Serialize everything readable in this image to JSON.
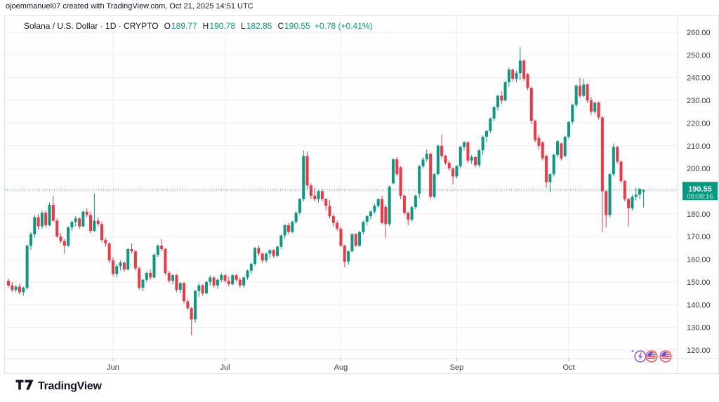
{
  "attribution": "ojoemmanuel07 created with TradingView.com, Oct 21, 2025 14:51 UTC",
  "header": {
    "title": "Solana / U.S. Dollar · 1D · CRYPTO",
    "o_label": "O",
    "o_value": "189.77",
    "h_label": "H",
    "h_value": "190.78",
    "l_label": "L",
    "l_value": "182.85",
    "c_label": "C",
    "c_value": "190.55",
    "change": "+0.78 (+0.41%)"
  },
  "price_label": {
    "price": "190.55",
    "countdown": "09:08:16"
  },
  "footer": {
    "logo_text": "TradingView"
  },
  "colors": {
    "up": "#089981",
    "down": "#f23645",
    "grid": "#f7e8ed",
    "border": "#e0e3eb",
    "axis_text": "#363a45",
    "tick": "#b2b5be",
    "badge_text": "#ffffff"
  },
  "chart_data": {
    "type": "candlestick",
    "title": "Solana / U.S. Dollar, 1D, CRYPTO",
    "interval": "1D",
    "first_candle_date": "2025-05-04",
    "last_candle_date": "2025-10-21",
    "last_price": 190.55,
    "y_ticks": [
      260,
      250,
      240,
      230,
      220,
      210,
      200,
      190,
      180,
      170,
      160,
      150,
      140,
      130,
      120
    ],
    "y_tick_label_hidden": 190,
    "y_range_visible": [
      116,
      267
    ],
    "grid": true,
    "month_ticks": [
      {
        "label": "Jun",
        "index": 28
      },
      {
        "label": "Jul",
        "index": 58
      },
      {
        "label": "Aug",
        "index": 89
      },
      {
        "label": "Sep",
        "index": 120
      },
      {
        "label": "Oct",
        "index": 150
      }
    ],
    "ohlc_order": [
      "open",
      "high",
      "low",
      "close"
    ],
    "candles": [
      [
        150.5,
        151.5,
        147.5,
        148.5
      ],
      [
        148.5,
        150.0,
        145.5,
        146.5
      ],
      [
        146.5,
        148.5,
        145.5,
        148.0
      ],
      [
        148.0,
        149.5,
        144.5,
        145.5
      ],
      [
        145.5,
        148.0,
        144.0,
        147.5
      ],
      [
        147.5,
        166.5,
        146.5,
        166.0
      ],
      [
        166.0,
        172.0,
        164.0,
        171.0
      ],
      [
        171.0,
        179.5,
        169.5,
        178.5
      ],
      [
        178.5,
        180.0,
        173.0,
        174.5
      ],
      [
        174.5,
        181.5,
        173.5,
        180.5
      ],
      [
        180.5,
        181.5,
        174.0,
        175.0
      ],
      [
        175.0,
        185.0,
        174.5,
        184.0
      ],
      [
        184.0,
        188.0,
        176.5,
        177.0
      ],
      [
        177.0,
        178.0,
        169.5,
        170.0
      ],
      [
        170.0,
        171.5,
        167.0,
        168.0
      ],
      [
        168.0,
        169.0,
        162.5,
        166.0
      ],
      [
        166.0,
        174.5,
        165.5,
        174.0
      ],
      [
        174.0,
        177.0,
        172.5,
        176.5
      ],
      [
        176.5,
        179.0,
        174.5,
        178.0
      ],
      [
        178.0,
        178.5,
        173.5,
        174.5
      ],
      [
        174.5,
        181.5,
        174.0,
        181.0
      ],
      [
        181.0,
        182.5,
        178.5,
        179.5
      ],
      [
        179.5,
        181.0,
        171.5,
        172.5
      ],
      [
        172.5,
        189.0,
        172.0,
        177.0
      ],
      [
        177.0,
        178.5,
        174.5,
        175.5
      ],
      [
        175.5,
        176.5,
        167.5,
        168.5
      ],
      [
        168.5,
        169.5,
        165.5,
        167.0
      ],
      [
        167.0,
        167.5,
        158.5,
        159.5
      ],
      [
        159.5,
        161.0,
        152.5,
        153.5
      ],
      [
        153.5,
        158.0,
        152.0,
        157.0
      ],
      [
        157.0,
        159.5,
        155.0,
        158.5
      ],
      [
        158.5,
        159.0,
        154.5,
        155.5
      ],
      [
        155.5,
        165.0,
        155.0,
        164.5
      ],
      [
        164.5,
        167.0,
        162.5,
        163.5
      ],
      [
        163.5,
        164.0,
        155.0,
        156.0
      ],
      [
        156.0,
        157.0,
        146.5,
        147.5
      ],
      [
        147.5,
        151.5,
        146.0,
        151.0
      ],
      [
        151.0,
        154.5,
        150.0,
        154.0
      ],
      [
        154.0,
        155.5,
        151.0,
        152.0
      ],
      [
        152.0,
        162.5,
        151.5,
        162.0
      ],
      [
        162.0,
        166.5,
        161.0,
        166.0
      ],
      [
        166.0,
        169.0,
        163.5,
        164.5
      ],
      [
        164.5,
        165.0,
        153.0,
        154.0
      ],
      [
        154.0,
        155.0,
        149.5,
        150.5
      ],
      [
        150.5,
        153.5,
        149.0,
        153.0
      ],
      [
        153.0,
        153.5,
        145.5,
        146.5
      ],
      [
        146.5,
        150.0,
        145.0,
        149.5
      ],
      [
        149.5,
        150.0,
        140.5,
        141.5
      ],
      [
        141.5,
        142.5,
        137.5,
        138.5
      ],
      [
        138.5,
        139.0,
        126.5,
        133.5
      ],
      [
        133.5,
        146.5,
        132.0,
        146.0
      ],
      [
        146.0,
        149.5,
        143.5,
        148.5
      ],
      [
        148.5,
        149.0,
        144.0,
        145.0
      ],
      [
        145.0,
        150.5,
        144.5,
        150.0
      ],
      [
        150.0,
        153.0,
        148.5,
        152.0
      ],
      [
        152.0,
        152.5,
        147.5,
        148.5
      ],
      [
        148.5,
        151.5,
        147.0,
        151.0
      ],
      [
        151.0,
        154.0,
        150.0,
        153.0
      ],
      [
        153.0,
        153.5,
        149.5,
        150.5
      ],
      [
        150.5,
        152.5,
        148.0,
        149.0
      ],
      [
        149.0,
        153.5,
        148.5,
        153.0
      ],
      [
        153.0,
        153.5,
        150.0,
        151.0
      ],
      [
        151.0,
        152.0,
        147.5,
        148.5
      ],
      [
        148.5,
        152.5,
        147.5,
        152.0
      ],
      [
        152.0,
        155.5,
        151.0,
        155.0
      ],
      [
        155.0,
        158.5,
        153.5,
        158.0
      ],
      [
        158.0,
        165.5,
        157.0,
        165.0
      ],
      [
        165.0,
        166.0,
        161.5,
        162.5
      ],
      [
        162.5,
        163.0,
        158.5,
        159.5
      ],
      [
        159.5,
        163.0,
        158.5,
        162.5
      ],
      [
        162.5,
        164.5,
        160.5,
        164.0
      ],
      [
        164.0,
        164.5,
        160.5,
        161.5
      ],
      [
        161.5,
        166.0,
        161.0,
        165.5
      ],
      [
        165.5,
        171.0,
        164.5,
        170.5
      ],
      [
        170.5,
        175.5,
        169.0,
        175.0
      ],
      [
        175.0,
        176.0,
        171.0,
        172.0
      ],
      [
        172.0,
        177.0,
        171.5,
        176.5
      ],
      [
        176.5,
        181.0,
        175.5,
        180.5
      ],
      [
        180.5,
        187.0,
        179.5,
        186.5
      ],
      [
        186.5,
        208.0,
        185.5,
        205.5
      ],
      [
        205.5,
        207.5,
        190.5,
        192.5
      ],
      [
        192.5,
        193.5,
        186.5,
        188.0
      ],
      [
        188.0,
        191.5,
        185.5,
        186.5
      ],
      [
        186.5,
        190.5,
        185.0,
        190.0
      ],
      [
        190.0,
        191.0,
        185.5,
        186.5
      ],
      [
        186.5,
        187.0,
        181.5,
        183.5
      ],
      [
        183.5,
        186.0,
        178.0,
        179.0
      ],
      [
        179.0,
        180.0,
        174.5,
        176.0
      ],
      [
        176.0,
        177.0,
        172.5,
        173.5
      ],
      [
        173.5,
        174.5,
        165.5,
        166.0
      ],
      [
        166.0,
        166.5,
        156.5,
        159.0
      ],
      [
        159.0,
        164.0,
        157.5,
        163.5
      ],
      [
        163.5,
        171.5,
        163.0,
        171.0
      ],
      [
        171.0,
        171.5,
        165.5,
        166.0
      ],
      [
        166.0,
        172.5,
        165.5,
        172.0
      ],
      [
        172.0,
        177.0,
        171.0,
        176.5
      ],
      [
        176.5,
        179.5,
        175.0,
        179.0
      ],
      [
        179.0,
        181.5,
        177.5,
        181.0
      ],
      [
        181.0,
        184.5,
        180.0,
        183.5
      ],
      [
        183.5,
        187.0,
        182.5,
        186.5
      ],
      [
        186.5,
        188.0,
        175.5,
        176.0
      ],
      [
        183.0,
        184.0,
        169.5,
        175.5
      ],
      [
        175.5,
        192.5,
        174.5,
        192.0
      ],
      [
        193.5,
        204.5,
        193.0,
        204.0
      ],
      [
        204.0,
        205.0,
        196.5,
        197.5
      ],
      [
        200.5,
        201.0,
        186.5,
        188.0
      ],
      [
        188.0,
        188.5,
        179.5,
        180.5
      ],
      [
        180.5,
        181.0,
        175.0,
        177.5
      ],
      [
        177.5,
        183.5,
        176.5,
        183.0
      ],
      [
        183.0,
        188.5,
        182.0,
        188.0
      ],
      [
        189.0,
        201.5,
        187.0,
        201.0
      ],
      [
        201.0,
        205.0,
        200.0,
        204.0
      ],
      [
        204.0,
        208.5,
        203.0,
        206.5
      ],
      [
        206.5,
        207.0,
        186.5,
        187.5
      ],
      [
        187.5,
        198.0,
        187.0,
        197.5
      ],
      [
        197.5,
        210.5,
        197.0,
        210.0
      ],
      [
        210.0,
        215.0,
        204.5,
        205.5
      ],
      [
        205.5,
        206.0,
        201.5,
        202.5
      ],
      [
        202.5,
        203.5,
        199.0,
        200.0
      ],
      [
        200.0,
        200.5,
        193.0,
        196.5
      ],
      [
        196.5,
        201.5,
        195.5,
        201.0
      ],
      [
        201.0,
        210.0,
        200.0,
        209.5
      ],
      [
        209.5,
        212.0,
        208.0,
        211.5
      ],
      [
        211.5,
        212.0,
        202.5,
        203.5
      ],
      [
        203.5,
        206.0,
        202.0,
        205.0
      ],
      [
        205.0,
        205.5,
        200.5,
        201.5
      ],
      [
        201.5,
        208.5,
        200.5,
        208.0
      ],
      [
        208.0,
        214.5,
        206.0,
        214.0
      ],
      [
        214.0,
        217.0,
        211.5,
        216.5
      ],
      [
        216.5,
        222.5,
        215.5,
        222.0
      ],
      [
        222.0,
        227.5,
        221.0,
        227.0
      ],
      [
        227.0,
        232.5,
        225.5,
        232.0
      ],
      [
        232.0,
        234.0,
        228.5,
        230.0
      ],
      [
        230.0,
        238.5,
        229.5,
        238.0
      ],
      [
        238.0,
        244.5,
        236.0,
        243.5
      ],
      [
        243.5,
        244.0,
        238.5,
        239.5
      ],
      [
        239.5,
        243.0,
        238.0,
        242.0
      ],
      [
        242.0,
        253.5,
        239.0,
        247.5
      ],
      [
        247.5,
        248.0,
        238.5,
        239.5
      ],
      [
        241.5,
        242.0,
        234.5,
        235.5
      ],
      [
        235.5,
        236.0,
        219.5,
        221.0
      ],
      [
        221.0,
        221.5,
        211.5,
        212.5
      ],
      [
        213.5,
        215.0,
        208.5,
        210.0
      ],
      [
        211.5,
        212.0,
        203.5,
        204.5
      ],
      [
        205.5,
        206.0,
        191.5,
        194.0
      ],
      [
        194.0,
        198.0,
        189.5,
        197.5
      ],
      [
        197.5,
        206.5,
        196.5,
        206.0
      ],
      [
        206.0,
        212.5,
        205.0,
        212.0
      ],
      [
        211.0,
        211.5,
        203.5,
        204.5
      ],
      [
        205.5,
        214.5,
        205.0,
        214.0
      ],
      [
        214.0,
        221.0,
        213.0,
        220.5
      ],
      [
        220.5,
        228.5,
        219.5,
        228.0
      ],
      [
        228.0,
        237.0,
        227.0,
        236.5
      ],
      [
        236.5,
        240.0,
        231.0,
        232.0
      ],
      [
        232.0,
        239.5,
        231.5,
        237.0
      ],
      [
        237.0,
        237.5,
        229.0,
        230.0
      ],
      [
        230.0,
        231.5,
        223.5,
        225.0
      ],
      [
        225.0,
        229.5,
        224.0,
        229.0
      ],
      [
        229.0,
        229.5,
        221.5,
        222.5
      ],
      [
        222.5,
        223.0,
        172.0,
        190.0
      ],
      [
        190.0,
        190.5,
        174.0,
        179.5
      ],
      [
        179.5,
        198.0,
        178.5,
        197.5
      ],
      [
        197.5,
        211.0,
        196.5,
        209.5
      ],
      [
        209.5,
        210.0,
        202.0,
        203.0
      ],
      [
        203.0,
        203.5,
        193.5,
        194.5
      ],
      [
        194.5,
        195.0,
        185.5,
        186.5
      ],
      [
        186.5,
        187.0,
        174.5,
        182.5
      ],
      [
        182.5,
        188.5,
        181.5,
        187.5
      ],
      [
        187.5,
        191.5,
        186.0,
        188.5
      ],
      [
        188.5,
        191.5,
        186.5,
        191.0
      ],
      [
        189.77,
        190.78,
        182.85,
        190.55
      ]
    ]
  }
}
